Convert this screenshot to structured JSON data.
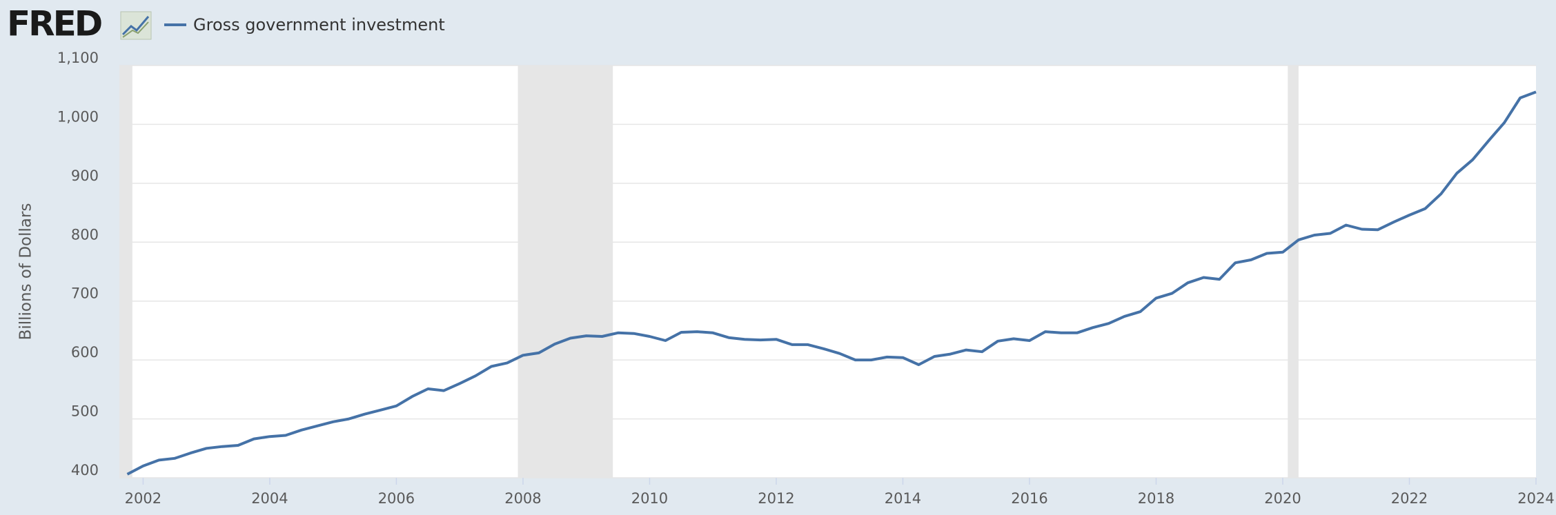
{
  "logo": "FRED",
  "chart_data": {
    "type": "line",
    "y_label": "Billions of Dollars",
    "x": [
      2001.75,
      2002,
      2002.25,
      2002.5,
      2002.75,
      2003,
      2003.25,
      2003.5,
      2003.75,
      2004,
      2004.25,
      2004.5,
      2004.75,
      2005,
      2005.25,
      2005.5,
      2005.75,
      2006,
      2006.25,
      2006.5,
      2006.75,
      2007,
      2007.25,
      2007.5,
      2007.75,
      2008,
      2008.25,
      2008.5,
      2008.75,
      2009,
      2009.25,
      2009.5,
      2009.75,
      2010,
      2010.25,
      2010.5,
      2010.75,
      2011,
      2011.25,
      2011.5,
      2011.75,
      2012,
      2012.25,
      2012.5,
      2012.75,
      2013,
      2013.25,
      2013.5,
      2013.75,
      2014,
      2014.25,
      2014.5,
      2014.75,
      2015,
      2015.25,
      2015.5,
      2015.75,
      2016,
      2016.25,
      2016.5,
      2016.75,
      2017,
      2017.25,
      2017.5,
      2017.75,
      2018,
      2018.25,
      2018.5,
      2018.75,
      2019,
      2019.25,
      2019.5,
      2019.75,
      2020,
      2020.25,
      2020.5,
      2020.75,
      2021,
      2021.25,
      2021.5,
      2021.75,
      2022,
      2022.25,
      2022.5,
      2022.75,
      2023,
      2023.25,
      2023.5,
      2023.75,
      2024
    ],
    "series": [
      {
        "name": "Gross government investment",
        "color": "#4572a7",
        "values": [
          406,
          420,
          430,
          433,
          442,
          450,
          453,
          455,
          466,
          470,
          472,
          481,
          488,
          495,
          500,
          508,
          515,
          522,
          538,
          551,
          548,
          560,
          573,
          589,
          595,
          608,
          612,
          627,
          637,
          641,
          640,
          646,
          645,
          640,
          633,
          647,
          648,
          646,
          638,
          635,
          634,
          635,
          626,
          626,
          619,
          611,
          600,
          600,
          605,
          604,
          592,
          606,
          610,
          617,
          614,
          632,
          636,
          633,
          648,
          646,
          646,
          655,
          662,
          674,
          682,
          705,
          713,
          731,
          740,
          737,
          765,
          770,
          781,
          783,
          804,
          812,
          815,
          829,
          822,
          821,
          834,
          846,
          857,
          882,
          917,
          940,
          972,
          1003,
          1045,
          1055
        ]
      }
    ],
    "recessions": [
      [
        2001.25,
        2001.83
      ],
      [
        2007.92,
        2009.42
      ],
      [
        2020.08,
        2020.25
      ]
    ],
    "recession_color": "#e6e6e6",
    "xlim": [
      2001.625,
      2024
    ],
    "xticks": [
      2002,
      2004,
      2006,
      2008,
      2010,
      2012,
      2014,
      2016,
      2018,
      2020,
      2022,
      2024
    ],
    "ylim": [
      400,
      1100
    ],
    "yticks": [
      400,
      500,
      600,
      700,
      800,
      900,
      {
        "value": 1000,
        "label": "1,000"
      },
      {
        "value": 1100,
        "label": "1,100"
      }
    ],
    "grid": true
  }
}
